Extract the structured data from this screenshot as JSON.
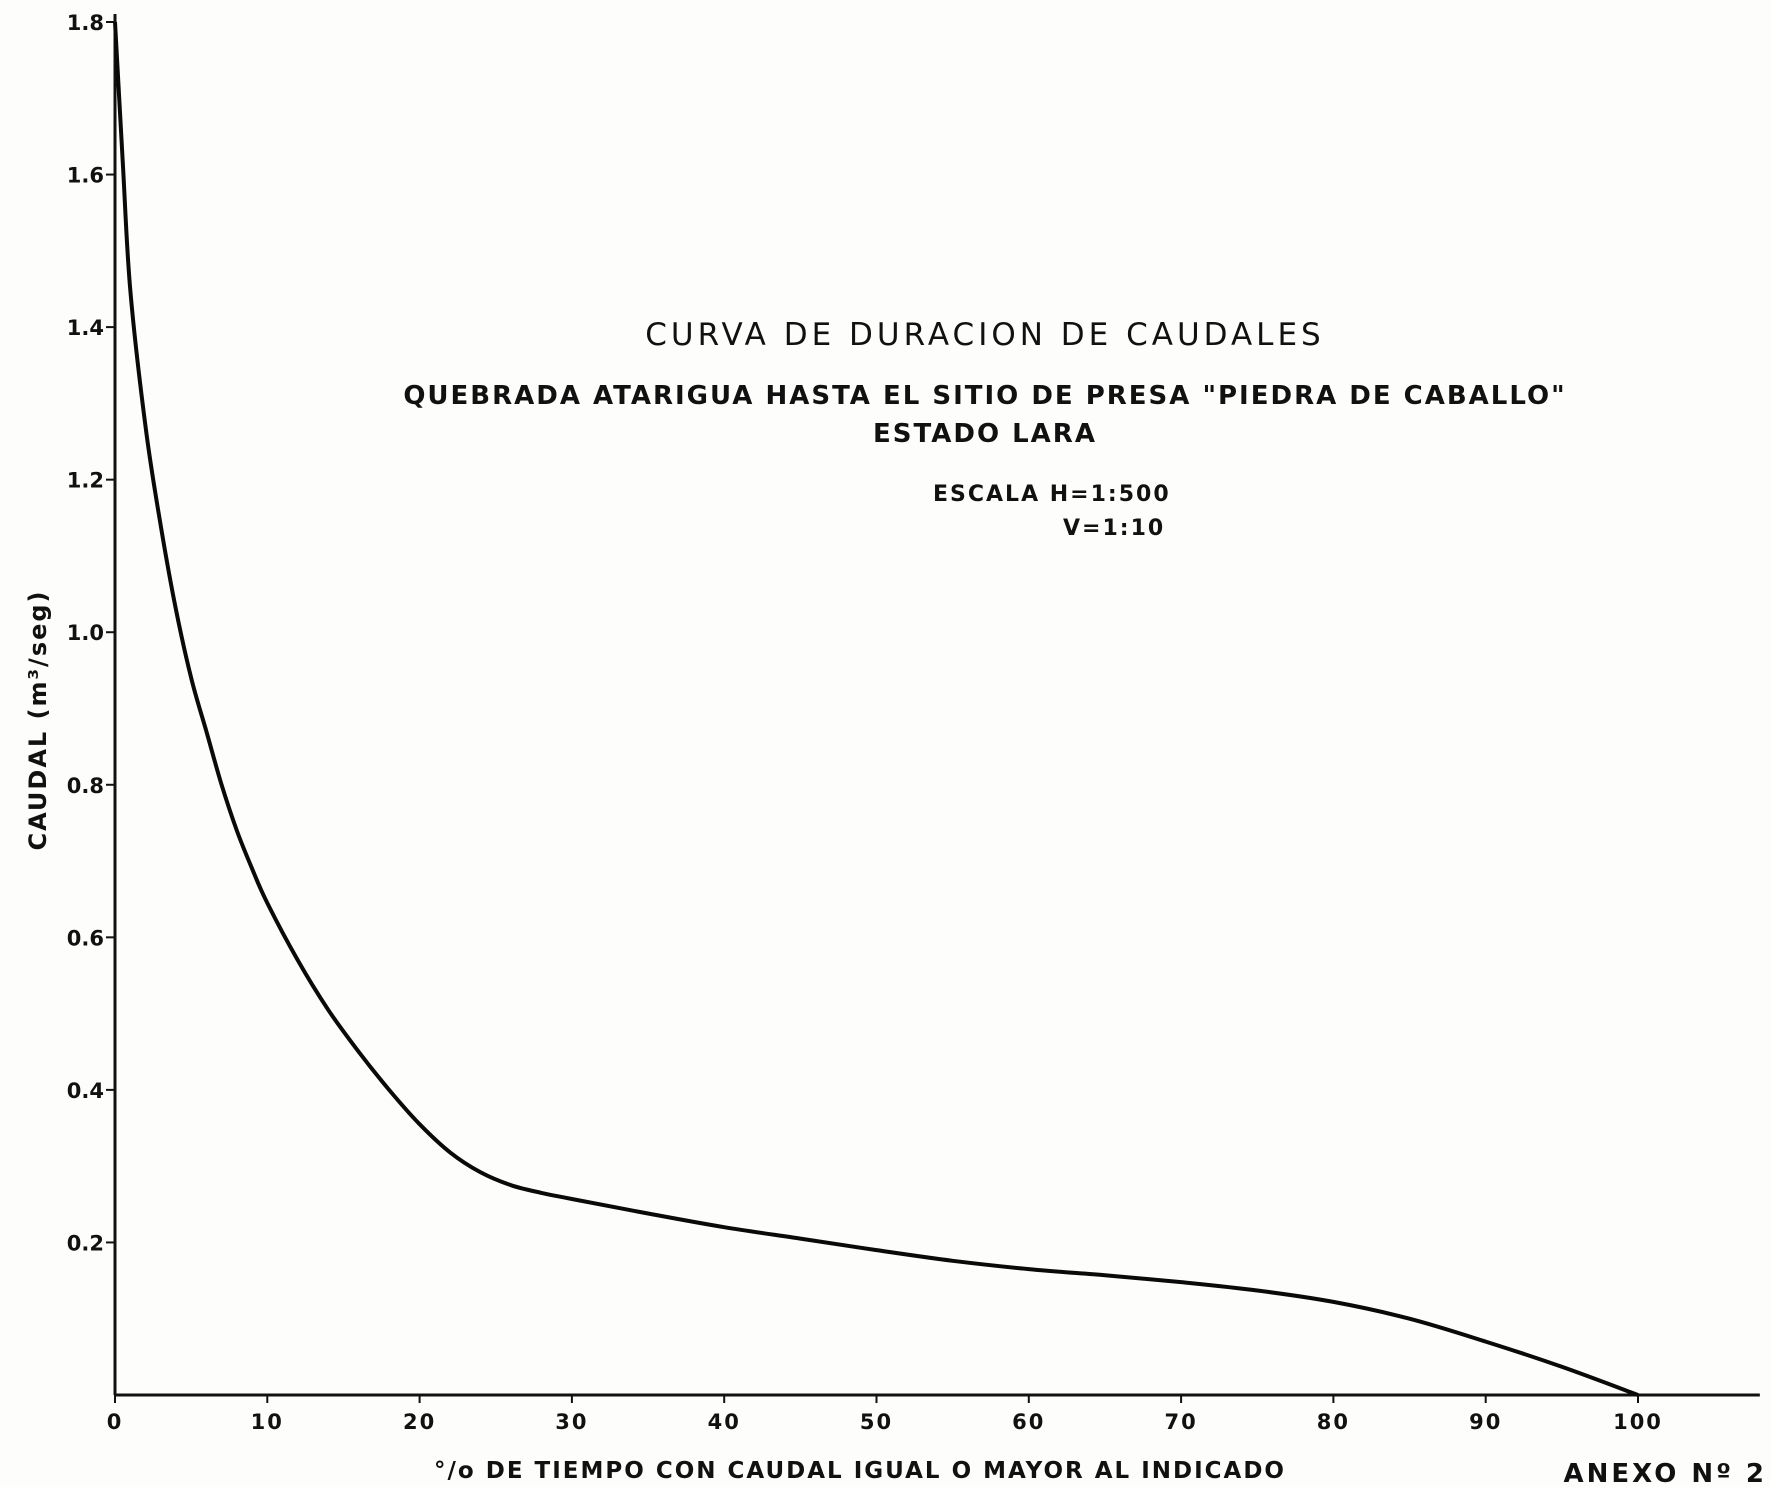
{
  "chart_data": {
    "type": "line",
    "title": "CURVA DE DURACION DE CAUDALES",
    "subtitle_lines": [
      "QUEBRADA ATARIGUA HASTA EL SITIO DE PRESA \"PIEDRA DE CABALLO\"",
      "ESTADO LARA"
    ],
    "scale_lines": [
      "ESCALA H=1:500",
      "V=1:10"
    ],
    "xlabel": "°/o DE TIEMPO CON CAUDAL IGUAL O MAYOR AL INDICADO",
    "ylabel": "CAUDAL (m³/seg)",
    "annex": "ANEXO Nº 2",
    "xlim": [
      0,
      108
    ],
    "ylim": [
      0,
      1.8
    ],
    "x_ticks": [
      0,
      10,
      20,
      30,
      40,
      50,
      60,
      70,
      80,
      90,
      100
    ],
    "x_tick_labels": [
      "0",
      "10",
      "20",
      "30",
      "40",
      "50",
      "60",
      "70",
      "80",
      "90",
      "100"
    ],
    "y_ticks": [
      0.2,
      0.4,
      0.6,
      0.8,
      1.0,
      1.2,
      1.4,
      1.6,
      1.8
    ],
    "y_tick_labels": [
      "0.2",
      "0.4",
      "0.6",
      "0.8",
      "1.0",
      "1.2",
      "1.4",
      "1.6",
      "1.8"
    ],
    "grid": false,
    "series": [
      {
        "x": [
          0,
          0.5,
          1,
          2,
          3,
          4,
          5,
          6,
          7,
          8,
          9,
          10,
          12,
          14,
          16,
          18,
          20,
          22,
          24,
          26,
          28,
          30,
          35,
          40,
          45,
          50,
          55,
          60,
          65,
          70,
          75,
          80,
          85,
          90,
          95,
          100
        ],
        "y": [
          1.8,
          1.62,
          1.45,
          1.27,
          1.14,
          1.03,
          0.94,
          0.87,
          0.8,
          0.74,
          0.69,
          0.645,
          0.57,
          0.505,
          0.45,
          0.4,
          0.355,
          0.318,
          0.292,
          0.275,
          0.265,
          0.257,
          0.238,
          0.22,
          0.205,
          0.19,
          0.176,
          0.165,
          0.157,
          0.148,
          0.137,
          0.122,
          0.1,
          0.07,
          0.037,
          0.0
        ]
      }
    ]
  }
}
